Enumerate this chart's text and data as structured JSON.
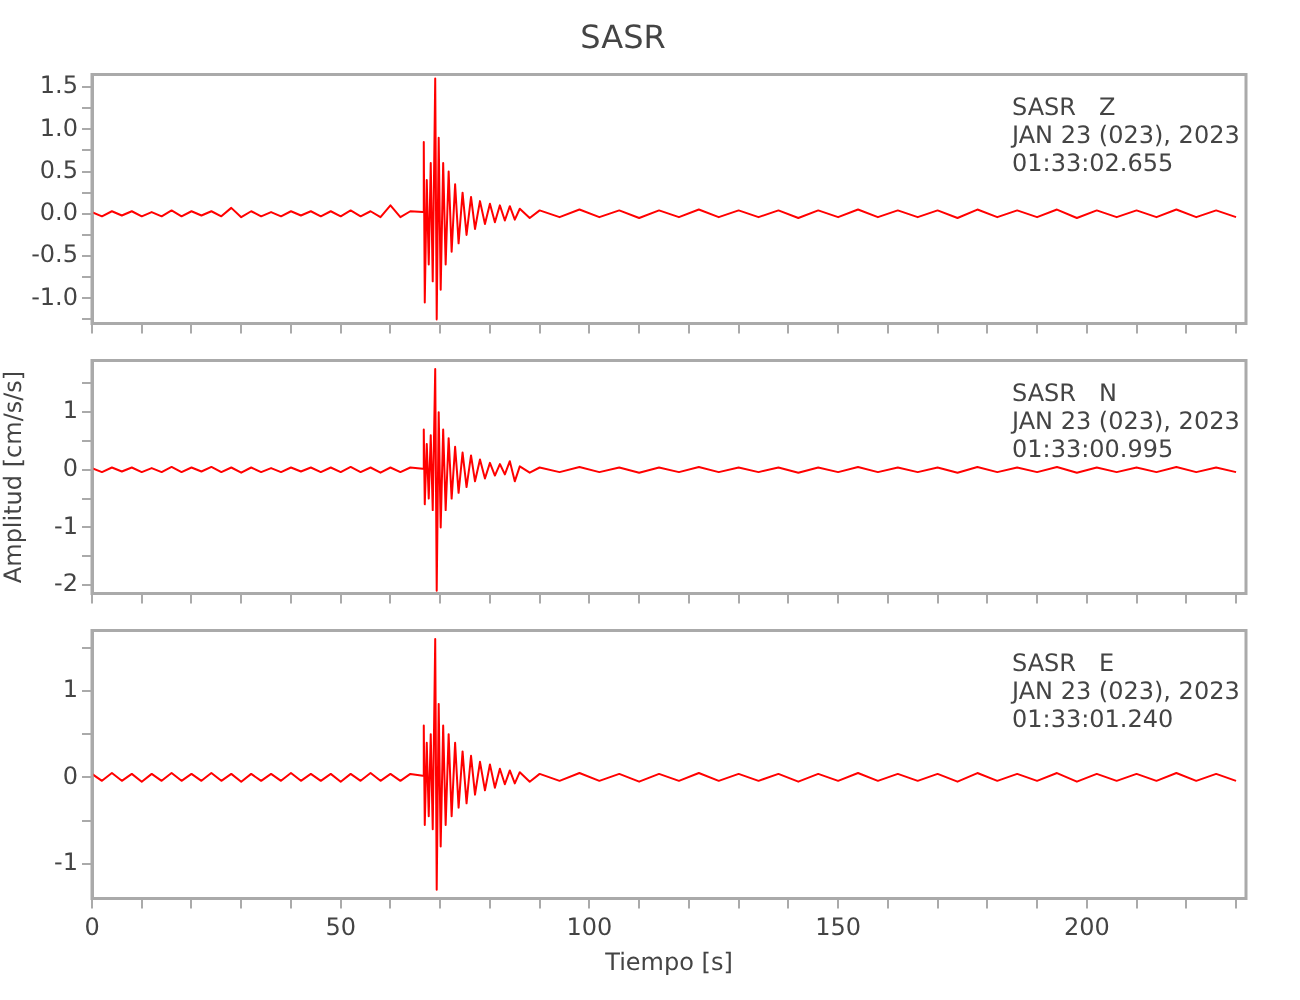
{
  "chart_data": [
    {
      "type": "line",
      "title": "SASR",
      "annotations": [
        "SASR   Z",
        "JAN 23 (023), 2023",
        "01:33:02.655"
      ],
      "tick_labels": "y",
      "xlim": [
        0,
        232
      ],
      "xticks": [
        0,
        {
          "value": 10,
          "label": null
        },
        {
          "value": 20,
          "label": null
        },
        {
          "value": 30,
          "label": null
        },
        {
          "value": 40,
          "label": null
        },
        50,
        {
          "value": 60,
          "label": null
        },
        {
          "value": 70,
          "label": null
        },
        {
          "value": 80,
          "label": null
        },
        {
          "value": 90,
          "label": null
        },
        100,
        {
          "value": 110,
          "label": null
        },
        {
          "value": 120,
          "label": null
        },
        {
          "value": 130,
          "label": null
        },
        {
          "value": 140,
          "label": null
        },
        150,
        {
          "value": 160,
          "label": null
        },
        {
          "value": 170,
          "label": null
        },
        {
          "value": 180,
          "label": null
        },
        {
          "value": 190,
          "label": null
        },
        200,
        {
          "value": 210,
          "label": null
        },
        {
          "value": 220,
          "label": null
        },
        {
          "value": 230,
          "label": null
        }
      ],
      "ylim": [
        -1.3,
        1.65
      ],
      "yticks": [
        {
          "value": -1.25,
          "label": null
        },
        {
          "value": -1,
          "label": "-1.0"
        },
        {
          "value": -0.75,
          "label": null
        },
        {
          "value": -0.5,
          "label": "-0.5"
        },
        {
          "value": -0.25,
          "label": null
        },
        {
          "value": 0,
          "label": "0.0"
        },
        {
          "value": 0.25,
          "label": null
        },
        {
          "value": 0.5,
          "label": "0.5"
        },
        {
          "value": 0.75,
          "label": null
        },
        {
          "value": 1,
          "label": "1.0"
        },
        {
          "value": 1.25,
          "label": null
        },
        {
          "value": 1.5,
          "label": "1.5"
        }
      ],
      "x": [
        0,
        2,
        4,
        6,
        8,
        10,
        12,
        14,
        16,
        18,
        20,
        22,
        24,
        26,
        28,
        30,
        32,
        34,
        36,
        38,
        40,
        42,
        44,
        46,
        48,
        50,
        52,
        54,
        56,
        58,
        60,
        62,
        64,
        66.5,
        66.7,
        66.9,
        67.3,
        67.7,
        68.1,
        68.5,
        69,
        69.3,
        69.7,
        70.1,
        70.6,
        71.1,
        71.7,
        72.3,
        73,
        73.7,
        74.5,
        75.3,
        76.2,
        77,
        78,
        79,
        80,
        81,
        82,
        83,
        84,
        85,
        86,
        88,
        90,
        94,
        98,
        102,
        106,
        110,
        114,
        118,
        122,
        126,
        130,
        134,
        138,
        142,
        146,
        150,
        154,
        158,
        162,
        166,
        170,
        174,
        178,
        182,
        186,
        190,
        194,
        198,
        202,
        206,
        210,
        214,
        218,
        222,
        226,
        230
      ],
      "series": [
        {
          "color": "#ff0000",
          "values": [
            0.02,
            -0.03,
            0.03,
            -0.02,
            0.03,
            -0.03,
            0.02,
            -0.03,
            0.04,
            -0.03,
            0.03,
            -0.02,
            0.03,
            -0.03,
            0.07,
            -0.04,
            0.03,
            -0.03,
            0.02,
            -0.03,
            0.03,
            -0.02,
            0.03,
            -0.03,
            0.03,
            -0.03,
            0.04,
            -0.03,
            0.03,
            -0.04,
            0.1,
            -0.04,
            0.03,
            0.02,
            0.85,
            -1.05,
            0.4,
            -0.6,
            0.6,
            -0.8,
            1.6,
            -1.25,
            0.9,
            -0.9,
            0.6,
            -0.6,
            0.5,
            -0.45,
            0.35,
            -0.35,
            0.25,
            -0.25,
            0.2,
            -0.18,
            0.15,
            -0.12,
            0.12,
            -0.1,
            0.1,
            -0.08,
            0.09,
            -0.07,
            0.06,
            -0.05,
            0.04,
            -0.04,
            0.05,
            -0.04,
            0.04,
            -0.05,
            0.04,
            -0.04,
            0.05,
            -0.04,
            0.04,
            -0.04,
            0.04,
            -0.05,
            0.04,
            -0.04,
            0.05,
            -0.04,
            0.04,
            -0.04,
            0.04,
            -0.05,
            0.05,
            -0.04,
            0.04,
            -0.04,
            0.05,
            -0.05,
            0.04,
            -0.04,
            0.04,
            -0.04,
            0.05,
            -0.04,
            0.04,
            -0.04
          ]
        }
      ]
    },
    {
      "type": "line",
      "ylabel": "Amplitud [cm/s/s]",
      "annotations": [
        "SASR   N",
        "JAN 23 (023), 2023",
        "01:33:00.995"
      ],
      "tick_labels": "y",
      "xlim": [
        0,
        232
      ],
      "xticks": [
        0,
        {
          "value": 10,
          "label": null
        },
        {
          "value": 20,
          "label": null
        },
        {
          "value": 30,
          "label": null
        },
        {
          "value": 40,
          "label": null
        },
        50,
        {
          "value": 60,
          "label": null
        },
        {
          "value": 70,
          "label": null
        },
        {
          "value": 80,
          "label": null
        },
        {
          "value": 90,
          "label": null
        },
        100,
        {
          "value": 110,
          "label": null
        },
        {
          "value": 120,
          "label": null
        },
        {
          "value": 130,
          "label": null
        },
        {
          "value": 140,
          "label": null
        },
        150,
        {
          "value": 160,
          "label": null
        },
        {
          "value": 170,
          "label": null
        },
        {
          "value": 180,
          "label": null
        },
        {
          "value": 190,
          "label": null
        },
        200,
        {
          "value": 210,
          "label": null
        },
        {
          "value": 220,
          "label": null
        },
        {
          "value": 230,
          "label": null
        }
      ],
      "ylim": [
        -2.15,
        1.9
      ],
      "yticks": [
        -2,
        {
          "value": -1.5,
          "label": null
        },
        -1,
        {
          "value": -0.5,
          "label": null
        },
        0,
        {
          "value": 0.5,
          "label": null
        },
        1,
        {
          "value": 1.5,
          "label": null
        }
      ],
      "x": [
        0,
        2,
        4,
        6,
        8,
        10,
        12,
        14,
        16,
        18,
        20,
        22,
        24,
        26,
        28,
        30,
        32,
        34,
        36,
        38,
        40,
        42,
        44,
        46,
        48,
        50,
        52,
        54,
        56,
        58,
        60,
        62,
        64,
        66.5,
        66.7,
        66.9,
        67.3,
        67.7,
        68.1,
        68.5,
        69,
        69.3,
        69.7,
        70.1,
        70.6,
        71.1,
        71.7,
        72.3,
        73,
        73.7,
        74.5,
        75.3,
        76.2,
        77,
        78,
        79,
        80,
        81,
        82,
        83,
        84,
        85,
        86,
        88,
        90,
        94,
        98,
        102,
        106,
        110,
        114,
        118,
        122,
        126,
        130,
        134,
        138,
        142,
        146,
        150,
        154,
        158,
        162,
        166,
        170,
        174,
        178,
        182,
        186,
        190,
        194,
        198,
        202,
        206,
        210,
        214,
        218,
        222,
        226,
        230
      ],
      "series": [
        {
          "color": "#ff0000",
          "values": [
            0.03,
            -0.04,
            0.04,
            -0.03,
            0.04,
            -0.04,
            0.03,
            -0.04,
            0.05,
            -0.04,
            0.04,
            -0.03,
            0.05,
            -0.04,
            0.04,
            -0.05,
            0.04,
            -0.04,
            0.03,
            -0.04,
            0.04,
            -0.03,
            0.04,
            -0.04,
            0.04,
            -0.04,
            0.05,
            -0.04,
            0.04,
            -0.05,
            0.04,
            -0.04,
            0.04,
            0.02,
            0.7,
            -0.6,
            0.45,
            -0.5,
            0.6,
            -0.7,
            1.75,
            -2.1,
            1.0,
            -1.0,
            0.7,
            -0.7,
            0.55,
            -0.5,
            0.4,
            -0.4,
            0.3,
            -0.3,
            0.25,
            -0.2,
            0.18,
            -0.15,
            0.12,
            -0.1,
            0.1,
            -0.08,
            0.15,
            -0.2,
            0.06,
            -0.05,
            0.04,
            -0.04,
            0.05,
            -0.04,
            0.04,
            -0.05,
            0.04,
            -0.04,
            0.05,
            -0.04,
            0.04,
            -0.04,
            0.04,
            -0.05,
            0.04,
            -0.04,
            0.05,
            -0.04,
            0.04,
            -0.04,
            0.04,
            -0.05,
            0.05,
            -0.04,
            0.04,
            -0.04,
            0.05,
            -0.05,
            0.04,
            -0.04,
            0.04,
            -0.04,
            0.05,
            -0.04,
            0.04,
            -0.04
          ]
        }
      ]
    },
    {
      "type": "line",
      "xlabel": "Tiempo [s]",
      "annotations": [
        "SASR   E",
        "JAN 23 (023), 2023",
        "01:33:01.240"
      ],
      "xlim": [
        0,
        232
      ],
      "xticks": [
        0,
        {
          "value": 10,
          "label": null
        },
        {
          "value": 20,
          "label": null
        },
        {
          "value": 30,
          "label": null
        },
        {
          "value": 40,
          "label": null
        },
        50,
        {
          "value": 60,
          "label": null
        },
        {
          "value": 70,
          "label": null
        },
        {
          "value": 80,
          "label": null
        },
        {
          "value": 90,
          "label": null
        },
        100,
        {
          "value": 110,
          "label": null
        },
        {
          "value": 120,
          "label": null
        },
        {
          "value": 130,
          "label": null
        },
        {
          "value": 140,
          "label": null
        },
        150,
        {
          "value": 160,
          "label": null
        },
        {
          "value": 170,
          "label": null
        },
        {
          "value": 180,
          "label": null
        },
        {
          "value": 190,
          "label": null
        },
        200,
        {
          "value": 210,
          "label": null
        },
        {
          "value": 220,
          "label": null
        },
        {
          "value": 230,
          "label": null
        }
      ],
      "ylim": [
        -1.4,
        1.7
      ],
      "yticks": [
        -1,
        {
          "value": -0.5,
          "label": null
        },
        0,
        {
          "value": 0.5,
          "label": null
        },
        1,
        {
          "value": 1.5,
          "label": null
        }
      ],
      "x": [
        0,
        2,
        4,
        6,
        8,
        10,
        12,
        14,
        16,
        18,
        20,
        22,
        24,
        26,
        28,
        30,
        32,
        34,
        36,
        38,
        40,
        42,
        44,
        46,
        48,
        50,
        52,
        54,
        56,
        58,
        60,
        62,
        64,
        66.5,
        66.7,
        66.9,
        67.3,
        67.7,
        68.1,
        68.5,
        69,
        69.3,
        69.7,
        70.1,
        70.6,
        71.1,
        71.7,
        72.3,
        73,
        73.7,
        74.5,
        75.3,
        76.2,
        77,
        78,
        79,
        80,
        81,
        82,
        83,
        84,
        85,
        86,
        88,
        90,
        94,
        98,
        102,
        106,
        110,
        114,
        118,
        122,
        126,
        130,
        134,
        138,
        142,
        146,
        150,
        154,
        158,
        162,
        166,
        170,
        174,
        178,
        182,
        186,
        190,
        194,
        198,
        202,
        206,
        210,
        214,
        218,
        222,
        226,
        230
      ],
      "series": [
        {
          "color": "#ff0000",
          "values": [
            0.04,
            -0.04,
            0.05,
            -0.04,
            0.04,
            -0.05,
            0.04,
            -0.04,
            0.05,
            -0.04,
            0.04,
            -0.04,
            0.05,
            -0.04,
            0.04,
            -0.05,
            0.04,
            -0.04,
            0.04,
            -0.04,
            0.05,
            -0.04,
            0.04,
            -0.04,
            0.04,
            -0.05,
            0.04,
            -0.04,
            0.05,
            -0.04,
            0.04,
            -0.04,
            0.04,
            0.02,
            0.6,
            -0.55,
            0.4,
            -0.45,
            0.5,
            -0.6,
            1.6,
            -1.3,
            0.85,
            -0.8,
            0.6,
            -0.55,
            0.5,
            -0.45,
            0.4,
            -0.35,
            0.3,
            -0.3,
            0.25,
            -0.2,
            0.18,
            -0.15,
            0.15,
            -0.12,
            0.1,
            -0.08,
            0.08,
            -0.07,
            0.06,
            -0.05,
            0.04,
            -0.04,
            0.05,
            -0.04,
            0.04,
            -0.05,
            0.04,
            -0.04,
            0.05,
            -0.04,
            0.04,
            -0.04,
            0.04,
            -0.05,
            0.04,
            -0.04,
            0.05,
            -0.04,
            0.04,
            -0.04,
            0.04,
            -0.05,
            0.05,
            -0.04,
            0.04,
            -0.04,
            0.05,
            -0.05,
            0.04,
            -0.04,
            0.04,
            -0.04,
            0.05,
            -0.04,
            0.04,
            -0.04
          ]
        }
      ]
    }
  ]
}
